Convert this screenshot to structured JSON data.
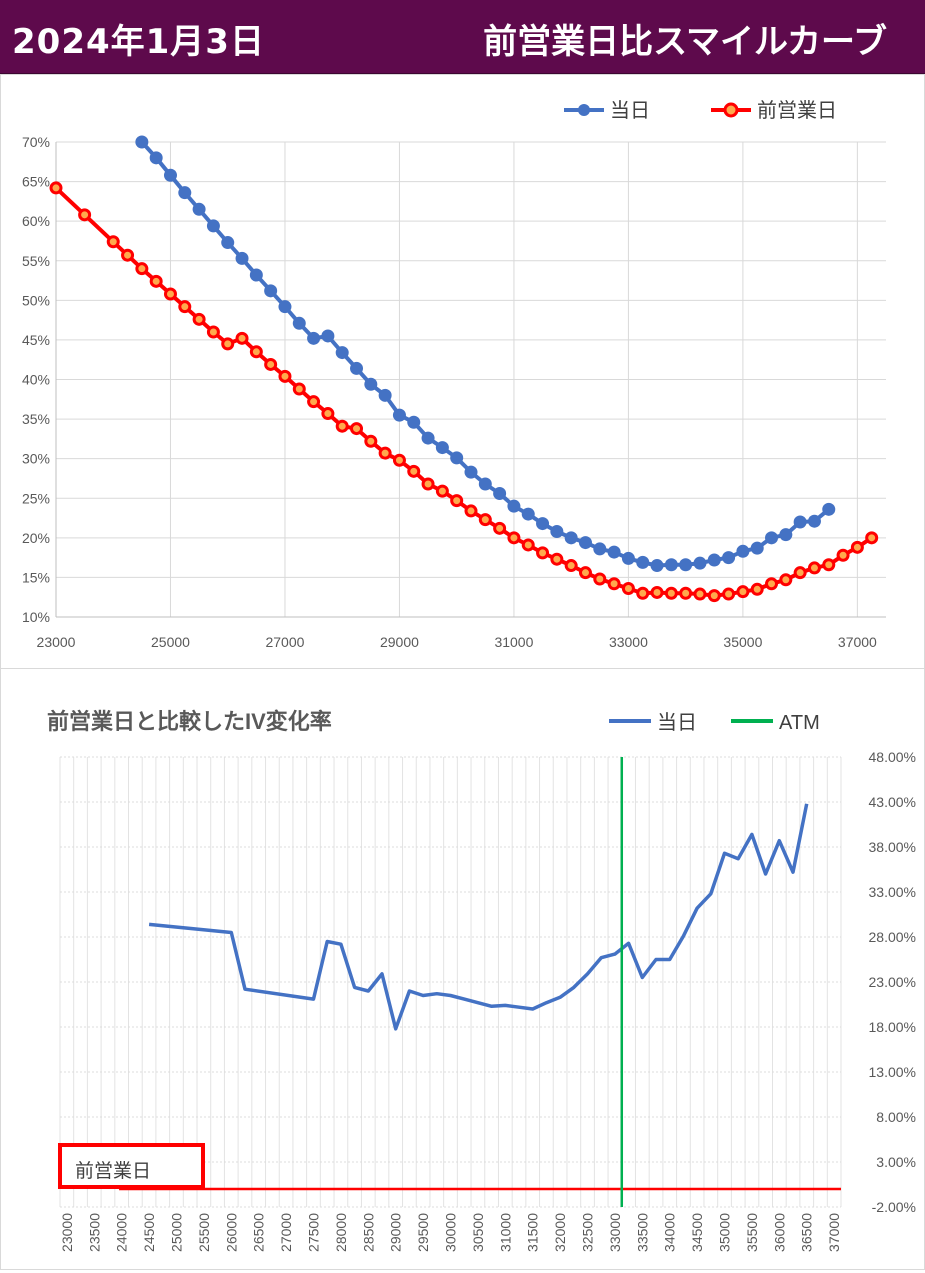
{
  "header": {
    "date": "2024年1月3日",
    "title": "前営業日比スマイルカーブ"
  },
  "colors": {
    "header_bg": "#5e0a4c",
    "today": "#4472c4",
    "previous": "#ff0000",
    "atm": "#00b050",
    "box": "#ff0000"
  },
  "chart_data": [
    {
      "type": "line",
      "title": "",
      "legend_position": "top-right",
      "grid": true,
      "xlim": [
        23000,
        37500
      ],
      "ylim": [
        10,
        70
      ],
      "x_ticks": [
        23000,
        25000,
        27000,
        29000,
        31000,
        33000,
        35000,
        37000
      ],
      "y_ticks": [
        10,
        15,
        20,
        25,
        30,
        35,
        40,
        45,
        50,
        55,
        60,
        65,
        70
      ],
      "y_tick_labels": [
        "10%",
        "15%",
        "20%",
        "25%",
        "30%",
        "35%",
        "40%",
        "45%",
        "50%",
        "55%",
        "60%",
        "65%",
        "70%"
      ],
      "series": [
        {
          "name": "当日",
          "color": "#4472c4",
          "x": [
            24500,
            24750,
            25000,
            25250,
            25500,
            25750,
            26000,
            26250,
            26500,
            26750,
            27000,
            27250,
            27500,
            27750,
            28000,
            28250,
            28500,
            28750,
            29000,
            29250,
            29500,
            29750,
            30000,
            30250,
            30500,
            30750,
            31000,
            31250,
            31500,
            31750,
            32000,
            32250,
            32500,
            32750,
            33000,
            33250,
            33500,
            33750,
            34000,
            34250,
            34500,
            34750,
            35000,
            35250,
            35500,
            35750,
            36000,
            36250,
            36500
          ],
          "y": [
            70.0,
            68.0,
            65.8,
            63.6,
            61.5,
            59.4,
            57.3,
            55.3,
            53.2,
            51.2,
            49.2,
            47.1,
            45.2,
            45.5,
            43.4,
            41.4,
            39.4,
            38.0,
            35.5,
            34.6,
            32.6,
            31.4,
            30.1,
            28.3,
            26.8,
            25.6,
            24.0,
            23.0,
            21.8,
            20.8,
            20.0,
            19.4,
            18.6,
            18.2,
            17.4,
            16.9,
            16.5,
            16.6,
            16.6,
            16.8,
            17.2,
            17.5,
            18.3,
            18.7,
            20.0,
            20.4,
            22.0,
            22.1,
            23.6
          ]
        },
        {
          "name": "前営業日",
          "color": "#ff0000",
          "x": [
            23000,
            23500,
            24000,
            24250,
            24500,
            24750,
            25000,
            25250,
            25500,
            25750,
            26000,
            26250,
            26500,
            26750,
            27000,
            27250,
            27500,
            27750,
            28000,
            28250,
            28500,
            28750,
            29000,
            29250,
            29500,
            29750,
            30000,
            30250,
            30500,
            30750,
            31000,
            31250,
            31500,
            31750,
            32000,
            32250,
            32500,
            32750,
            33000,
            33250,
            33500,
            33750,
            34000,
            34250,
            34500,
            34750,
            35000,
            35250,
            35500,
            35750,
            36000,
            36250,
            36500,
            36750,
            37000,
            37250
          ],
          "y": [
            64.2,
            60.8,
            57.4,
            55.7,
            54.0,
            52.4,
            50.8,
            49.2,
            47.6,
            46.0,
            44.5,
            45.2,
            43.5,
            41.9,
            40.4,
            38.8,
            37.2,
            35.7,
            34.1,
            33.8,
            32.2,
            30.7,
            29.8,
            28.4,
            26.8,
            25.9,
            24.7,
            23.4,
            22.3,
            21.2,
            20.0,
            19.1,
            18.1,
            17.3,
            16.5,
            15.6,
            14.8,
            14.2,
            13.6,
            13.0,
            13.1,
            13.0,
            13.0,
            12.9,
            12.7,
            12.9,
            13.2,
            13.5,
            14.2,
            14.7,
            15.6,
            16.2,
            16.6,
            17.8,
            18.8,
            20.0
          ]
        }
      ]
    },
    {
      "type": "line",
      "title": "前営業日と比較したIV変化率",
      "legend_position": "top-right",
      "grid": true,
      "y_axis_side": "right",
      "ylim": [
        -2,
        48
      ],
      "y_ticks": [
        -2,
        3,
        8,
        13,
        18,
        23,
        28,
        33,
        38,
        43,
        48
      ],
      "y_tick_labels": [
        "-2.00%",
        "3.00%",
        "8.00%",
        "13.00%",
        "18.00%",
        "23.00%",
        "28.00%",
        "33.00%",
        "38.00%",
        "43.00%",
        "48.00%"
      ],
      "x_start": 23000,
      "x_step": 250,
      "x_count": 57,
      "x_tick_labels": [
        "23000",
        "23500",
        "24000",
        "24500",
        "25000",
        "25500",
        "26000",
        "26500",
        "27000",
        "27500",
        "28000",
        "28500",
        "29000",
        "29500",
        "30000",
        "30500",
        "31000",
        "31500",
        "32000",
        "32500",
        "33000",
        "33500",
        "34000",
        "34500",
        "35000",
        "35500",
        "36000",
        "36500",
        "37000"
      ],
      "atm": {
        "name": "ATM",
        "x": 33250,
        "color": "#00b050"
      },
      "baseline_label": "前営業日",
      "series": [
        {
          "name": "当日",
          "color": "#4472c4",
          "x": [
            24500,
            26000,
            26250,
            27500,
            27750,
            28000,
            28250,
            28500,
            28750,
            29000,
            29250,
            29500,
            29750,
            30000,
            30250,
            30500,
            30750,
            31000,
            31250,
            31500,
            31750,
            32000,
            32250,
            32500,
            32750,
            33000,
            33250,
            33500,
            33750,
            34000,
            34250,
            34500,
            34750,
            35000,
            35250,
            35500,
            35750,
            36000,
            36250,
            36500
          ],
          "y": [
            29.4,
            28.5,
            22.2,
            21.1,
            27.5,
            27.2,
            22.4,
            22.0,
            23.9,
            17.8,
            22.0,
            21.5,
            21.7,
            21.5,
            21.1,
            20.7,
            20.3,
            20.4,
            20.2,
            20.0,
            20.7,
            21.3,
            22.4,
            23.9,
            25.7,
            26.1,
            27.3,
            23.5,
            25.5,
            25.5,
            28.1,
            31.2,
            32.8,
            37.3,
            36.7,
            39.4,
            35.0,
            38.7,
            35.2,
            42.8
          ]
        },
        {
          "name": "前営業日",
          "color": "#ff0000",
          "x": [
            24500,
            37000
          ],
          "y": [
            0.0,
            0.0
          ]
        }
      ]
    }
  ]
}
